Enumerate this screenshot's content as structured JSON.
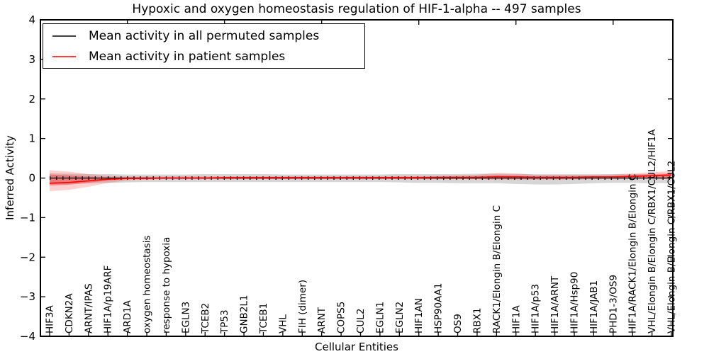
{
  "figure": {
    "background": "#ffffff",
    "spine_color": "#000000"
  },
  "chart_data": {
    "type": "line",
    "title": "Hypoxic and oxygen homeostasis regulation of HIF-1-alpha -- 497 samples",
    "xlabel": "Cellular Entities",
    "ylabel": "Inferred Activity",
    "ylim": [
      -4,
      4
    ],
    "yticks": [
      4,
      3,
      2,
      1,
      0,
      -1,
      -2,
      -3,
      -4
    ],
    "grid": false,
    "legend": {
      "position": "upper-left",
      "items": [
        {
          "label": "Mean activity in all permuted samples",
          "color": "#000000"
        },
        {
          "label": "Mean activity in patient samples",
          "color": "#ff0000"
        }
      ]
    },
    "categories": [
      "HIF3A",
      "CDKN2A",
      "ARNT/IPAS",
      "HIF1A/p19ARF",
      "ARD1A",
      "oxygen homeostasis",
      "response to hypoxia",
      "EGLN3",
      "TCEB2",
      "TP53",
      "GNB2L1",
      "TCEB1",
      "VHL",
      "FIH (dimer)",
      "ARNT",
      "COPS5",
      "CUL2",
      "EGLN1",
      "EGLN2",
      "HIF1AN",
      "HSP90AA1",
      "OS9",
      "RBX1",
      "RACK1/Elongin B/Elongin C",
      "HIF1A",
      "HIF1A/p53",
      "HIF1A/ARNT",
      "HIF1A/Hsp90",
      "HIF1A/JAB1",
      "PHD1-3/OS9",
      "HIF1A/RACK1/Elongin B/Elongin C",
      "VHL/Elongin B/Elongin C/RBX1/CUL2/HIF1A",
      "VHL/Elongin B/Elongin C/RBX1/CUL2"
    ],
    "top_tick_indices": [
      4,
      9,
      14,
      19,
      24,
      29
    ],
    "series": [
      {
        "name": "Mean activity in all permuted samples",
        "color": "#000000",
        "values": [
          0,
          0,
          0,
          0,
          0,
          0,
          0,
          0,
          0,
          0,
          0,
          0,
          0,
          0,
          0,
          0,
          0,
          0,
          0,
          0,
          0,
          0,
          0,
          0,
          0,
          0,
          0,
          0,
          0,
          0,
          0,
          0,
          0
        ]
      },
      {
        "name": "Mean activity in patient samples",
        "color": "#ff0000",
        "values": [
          -0.13,
          -0.11,
          -0.07,
          -0.03,
          -0.01,
          -0.01,
          0,
          0,
          0,
          0.01,
          0.01,
          0.01,
          0.01,
          0.01,
          0.01,
          0.01,
          0.01,
          0.01,
          0.01,
          0.01,
          0.02,
          0.02,
          0.02,
          0.03,
          0.03,
          0.02,
          0.02,
          0.02,
          0.03,
          0.03,
          0.04,
          0.06,
          0.08
        ]
      }
    ],
    "bands": [
      {
        "name": "permuted-samples-range",
        "color": "#9e9e9e",
        "opacity": 0.42,
        "upper": [
          0.12,
          0.11,
          0.1,
          0.1,
          0.09,
          0.09,
          0.09,
          0.09,
          0.1,
          0.1,
          0.1,
          0.1,
          0.09,
          0.09,
          0.09,
          0.09,
          0.09,
          0.09,
          0.1,
          0.1,
          0.1,
          0.1,
          0.11,
          0.11,
          0.1,
          0.1,
          0.1,
          0.1,
          0.1,
          0.1,
          0.1,
          0.09,
          0.09
        ],
        "lower": [
          -0.16,
          -0.15,
          -0.13,
          -0.12,
          -0.11,
          -0.1,
          -0.1,
          -0.1,
          -0.1,
          -0.1,
          -0.1,
          -0.1,
          -0.1,
          -0.1,
          -0.1,
          -0.1,
          -0.1,
          -0.1,
          -0.11,
          -0.12,
          -0.12,
          -0.13,
          -0.13,
          -0.13,
          -0.15,
          -0.16,
          -0.16,
          -0.15,
          -0.13,
          -0.12,
          -0.12,
          -0.13,
          -0.12
        ]
      },
      {
        "name": "patient-samples-range-outer",
        "color": "#ff0000",
        "opacity": 0.18,
        "upper": [
          0.2,
          0.16,
          0.1,
          0.06,
          0.04,
          0.04,
          0.04,
          0.05,
          0.05,
          0.05,
          0.05,
          0.05,
          0.05,
          0.05,
          0.05,
          0.05,
          0.05,
          0.05,
          0.06,
          0.06,
          0.06,
          0.07,
          0.08,
          0.13,
          0.12,
          0.08,
          0.08,
          0.08,
          0.08,
          0.09,
          0.12,
          0.15,
          0.18
        ],
        "lower": [
          -0.33,
          -0.3,
          -0.22,
          -0.12,
          -0.06,
          -0.04,
          -0.03,
          -0.03,
          -0.03,
          -0.03,
          -0.03,
          -0.03,
          -0.03,
          -0.03,
          -0.03,
          -0.03,
          -0.03,
          -0.03,
          -0.03,
          -0.03,
          -0.03,
          -0.03,
          -0.03,
          -0.04,
          -0.04,
          -0.04,
          -0.04,
          -0.04,
          -0.03,
          -0.03,
          -0.02,
          -0.02,
          -0.03
        ]
      },
      {
        "name": "patient-samples-range-inner",
        "color": "#ff0000",
        "opacity": 0.3,
        "upper": [
          0.09,
          0.07,
          0.04,
          0.02,
          0.02,
          0.02,
          0.02,
          0.02,
          0.02,
          0.02,
          0.02,
          0.02,
          0.02,
          0.02,
          0.02,
          0.02,
          0.02,
          0.02,
          0.03,
          0.03,
          0.03,
          0.03,
          0.04,
          0.07,
          0.06,
          0.04,
          0.04,
          0.04,
          0.04,
          0.05,
          0.08,
          0.1,
          0.12
        ],
        "lower": [
          -0.19,
          -0.17,
          -0.12,
          -0.06,
          -0.03,
          -0.02,
          -0.02,
          -0.02,
          -0.02,
          -0.02,
          -0.02,
          -0.02,
          -0.02,
          -0.02,
          -0.02,
          -0.02,
          -0.02,
          -0.02,
          -0.02,
          -0.02,
          -0.02,
          -0.02,
          -0.02,
          -0.02,
          -0.02,
          -0.02,
          -0.02,
          -0.02,
          -0.01,
          -0.01,
          0,
          0,
          0.01
        ]
      }
    ]
  }
}
